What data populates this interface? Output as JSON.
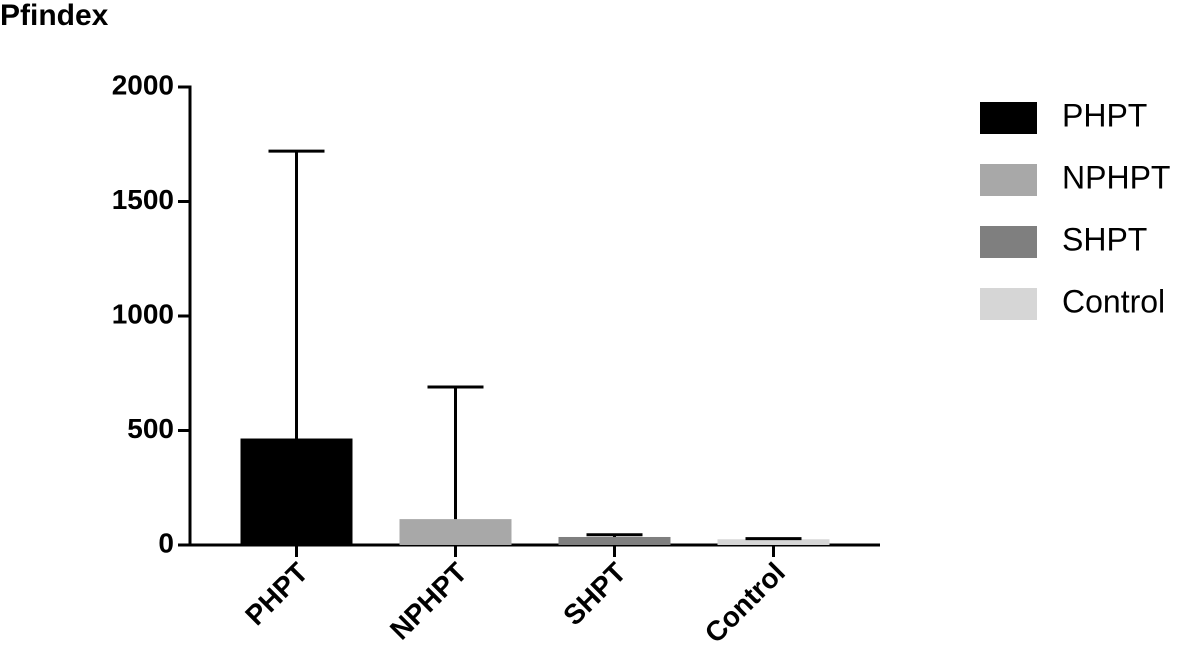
{
  "chart_data": {
    "type": "bar",
    "title": "Pfindex",
    "categories": [
      "PHPT",
      "NPHPT",
      "SHPT",
      "Control"
    ],
    "values": [
      465,
      113,
      35,
      25
    ],
    "errors": [
      1255,
      577,
      10,
      3
    ],
    "colors": [
      "#000000",
      "#a8a8a8",
      "#7f7f7f",
      "#d6d6d6"
    ],
    "ylim": [
      0,
      2000
    ],
    "yticks": [
      0,
      500,
      1000,
      1500,
      2000
    ],
    "legend": "right"
  }
}
